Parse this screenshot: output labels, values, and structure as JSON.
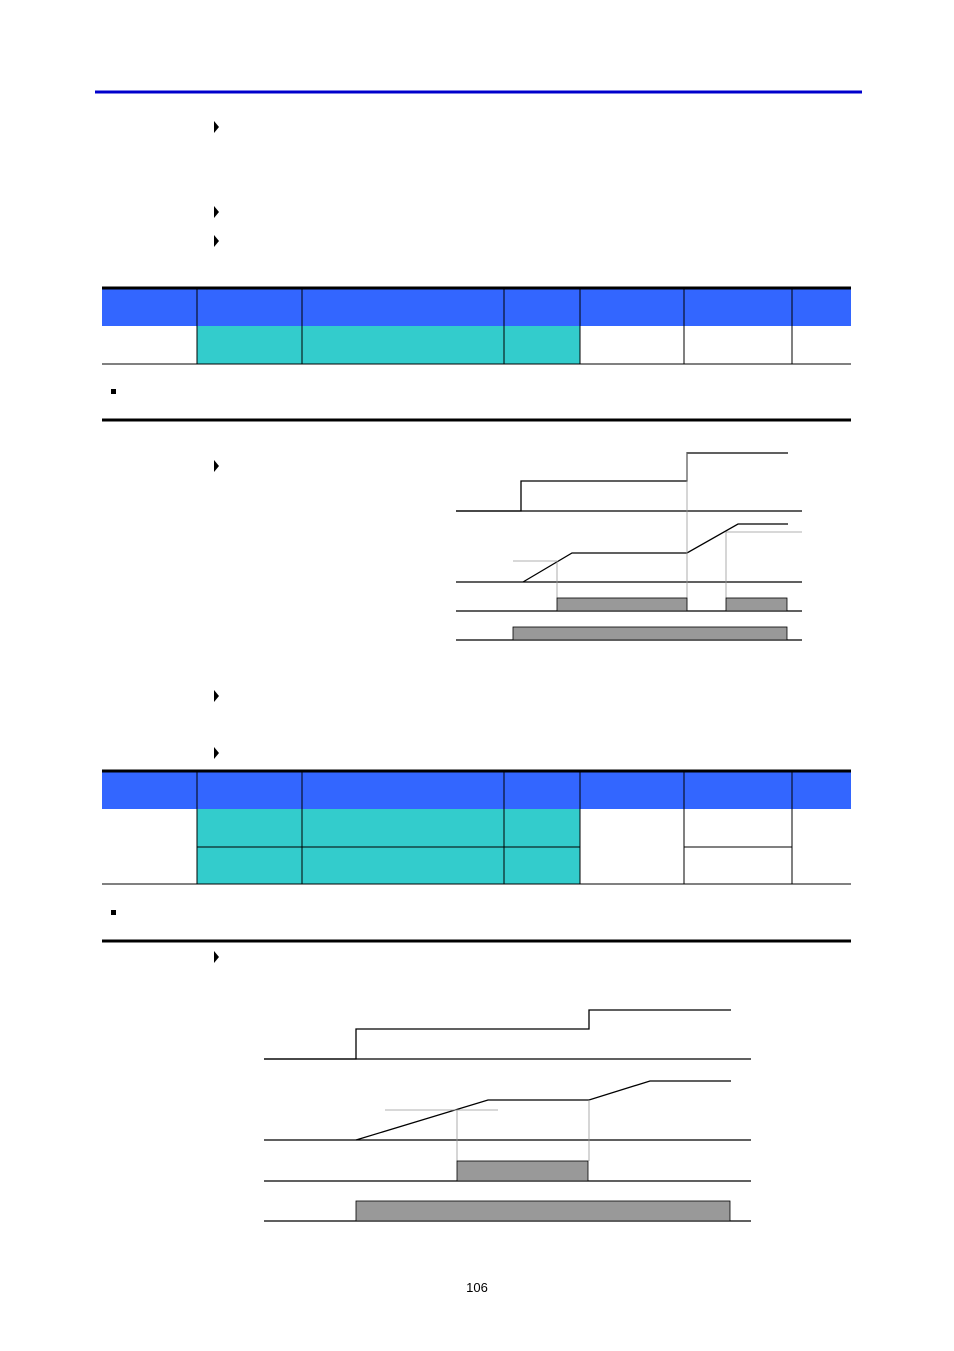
{
  "page_number": "106"
}
